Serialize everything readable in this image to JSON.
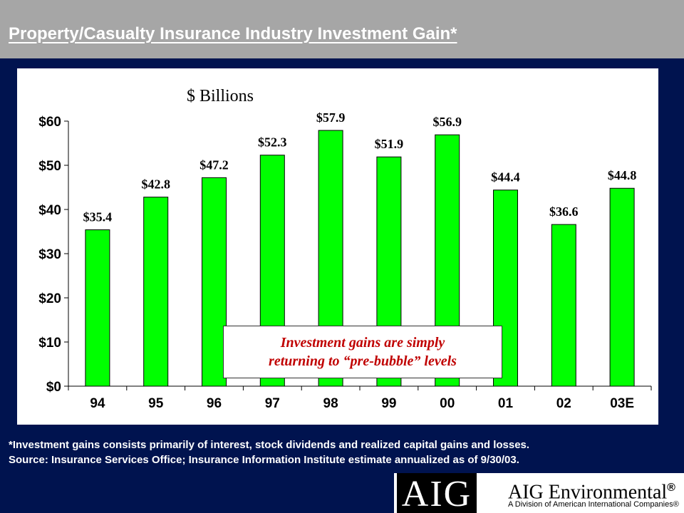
{
  "slide": {
    "title": "Property/Casualty Insurance Industry Investment Gain*",
    "callout_line1": "Investment gains are simply",
    "callout_line2": "returning to “pre-bubble” levels",
    "footnote_line1": "*Investment gains consists primarily of interest, stock dividends and realized capital gains and losses.",
    "footnote_line2": "Source: Insurance Services Office; Insurance Information Institute estimate annualized as of 9/30/03."
  },
  "logo": {
    "mark": "AIG",
    "name": "AIG Environmental",
    "registered": "®",
    "tagline": "A Division of American International Companies®"
  },
  "colors": {
    "background": "#00134f",
    "header": "#a6a6a6",
    "bar_fill": "#00ff00",
    "callout_text": "#c00000"
  },
  "chart_data": {
    "type": "bar",
    "unit_label": "$ Billions",
    "categories": [
      "94",
      "95",
      "96",
      "97",
      "98",
      "99",
      "00",
      "01",
      "02",
      "03E"
    ],
    "values": [
      35.4,
      42.8,
      47.2,
      52.3,
      57.9,
      51.9,
      56.9,
      44.4,
      36.6,
      44.8
    ],
    "data_labels": [
      "$35.4",
      "$42.8",
      "$47.2",
      "$52.3",
      "$57.9",
      "$51.9",
      "$56.9",
      "$44.4",
      "$36.6",
      "$44.8"
    ],
    "y_ticks": [
      0,
      10,
      20,
      30,
      40,
      50,
      60
    ],
    "y_tick_labels": [
      "$0",
      "$10",
      "$20",
      "$30",
      "$40",
      "$50",
      "$60"
    ],
    "ylim": [
      0,
      60
    ],
    "grid": false,
    "legend": "none"
  }
}
